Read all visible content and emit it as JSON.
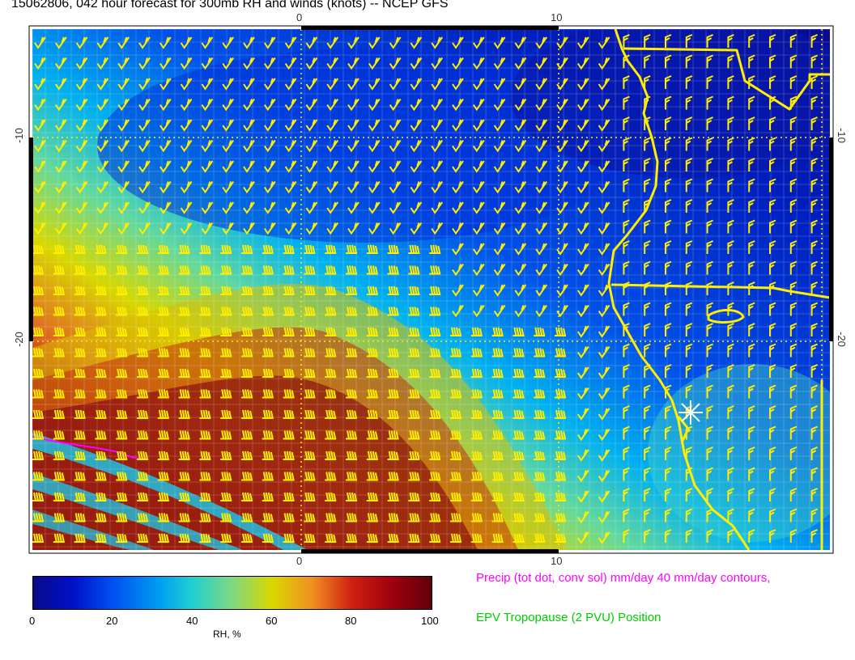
{
  "title": "15062806, 042 hour forecast for 300mb RH and winds (knots) -- NCEP GFS",
  "axes": {
    "top_ticks": [
      "0",
      "10"
    ],
    "bottom_ticks": [
      "0",
      "10"
    ],
    "left_ticks": [
      "-10",
      "-20"
    ],
    "right_ticks": [
      "-10",
      "-20"
    ]
  },
  "colorbar": {
    "label": "RH, %",
    "ticks": [
      "0",
      "20",
      "40",
      "60",
      "80",
      "100"
    ],
    "range": [
      0,
      100
    ]
  },
  "notes": {
    "precip": "Precip (tot dot, conv sol) mm/day 40 mm/day contours,",
    "epv": "EPV Tropopause (2 PVU) Position"
  },
  "colors": {
    "barbs": "#ffee00",
    "coast": "#ffee00",
    "precip_contour": "#ff00ff",
    "epv_line": "#00cc00"
  },
  "marker_icon": "asterisk-star-icon"
}
